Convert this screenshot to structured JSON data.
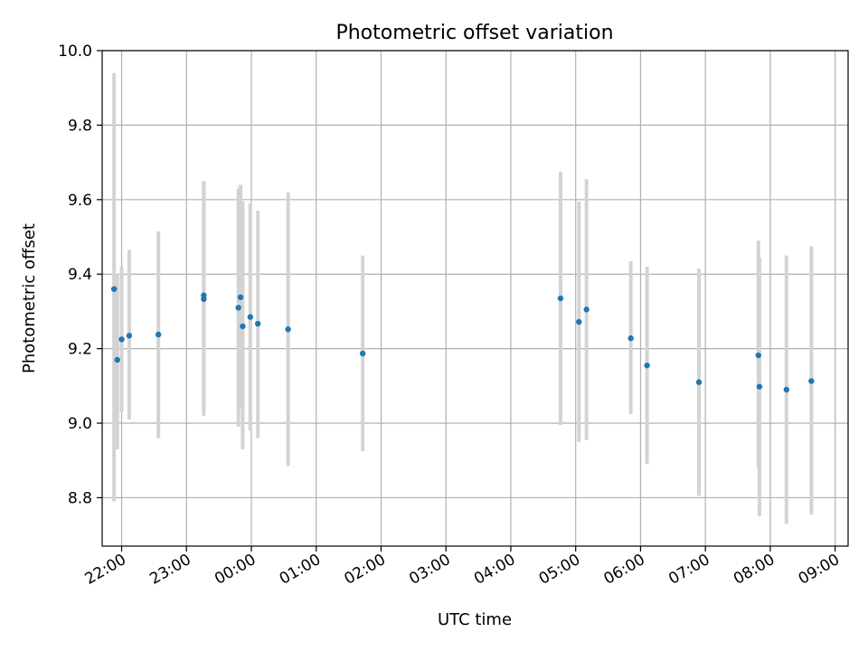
{
  "chart_data": {
    "type": "scatter",
    "title": "Photometric offset variation",
    "xlabel": "UTC time",
    "ylabel": "Photometric offset",
    "x_is_time": true,
    "xlim": [
      "21:42",
      "09:12"
    ],
    "ylim": [
      8.67,
      10.0
    ],
    "grid": true,
    "x_ticks": [
      "22:00",
      "23:00",
      "00:00",
      "01:00",
      "02:00",
      "03:00",
      "04:00",
      "05:00",
      "06:00",
      "07:00",
      "08:00",
      "09:00"
    ],
    "y_ticks": [
      "8.8",
      "9.0",
      "9.2",
      "9.4",
      "9.6",
      "9.8",
      "10.0"
    ],
    "marker_color": "#1f77b4",
    "errorbar_color": "#d3d3d3",
    "series": [
      {
        "points": [
          {
            "time": "21:53",
            "value": 9.36,
            "lo": 8.79,
            "hi": 9.94
          },
          {
            "time": "21:56",
            "value": 9.17,
            "lo": 8.93,
            "hi": 9.4
          },
          {
            "time": "22:00",
            "value": 9.225,
            "lo": 9.03,
            "hi": 9.42
          },
          {
            "time": "22:07",
            "value": 9.235,
            "lo": 9.01,
            "hi": 9.465
          },
          {
            "time": "22:34",
            "value": 9.238,
            "lo": 8.96,
            "hi": 9.515
          },
          {
            "time": "23:16",
            "value": 9.343,
            "lo": 9.03,
            "hi": 9.65
          },
          {
            "time": "23:16",
            "value": 9.333,
            "lo": 9.02,
            "hi": 9.64
          },
          {
            "time": "23:48",
            "value": 9.31,
            "lo": 8.99,
            "hi": 9.63
          },
          {
            "time": "23:50",
            "value": 9.338,
            "lo": 9.04,
            "hi": 9.64
          },
          {
            "time": "23:52",
            "value": 9.26,
            "lo": 8.93,
            "hi": 9.595
          },
          {
            "time": "23:59",
            "value": 9.285,
            "lo": 8.98,
            "hi": 9.59
          },
          {
            "time": "00:06",
            "value": 9.267,
            "lo": 8.96,
            "hi": 9.57
          },
          {
            "time": "00:34",
            "value": 9.252,
            "lo": 8.885,
            "hi": 9.62
          },
          {
            "time": "01:43",
            "value": 9.187,
            "lo": 8.925,
            "hi": 9.45
          },
          {
            "time": "04:46",
            "value": 9.335,
            "lo": 8.995,
            "hi": 9.675
          },
          {
            "time": "05:03",
            "value": 9.272,
            "lo": 8.95,
            "hi": 9.595
          },
          {
            "time": "05:10",
            "value": 9.305,
            "lo": 8.955,
            "hi": 9.655
          },
          {
            "time": "05:51",
            "value": 9.228,
            "lo": 9.025,
            "hi": 9.435
          },
          {
            "time": "06:06",
            "value": 9.155,
            "lo": 8.89,
            "hi": 9.42
          },
          {
            "time": "06:54",
            "value": 9.11,
            "lo": 8.805,
            "hi": 9.415
          },
          {
            "time": "07:49",
            "value": 9.182,
            "lo": 8.88,
            "hi": 9.49
          },
          {
            "time": "07:50",
            "value": 9.098,
            "lo": 8.75,
            "hi": 9.445
          },
          {
            "time": "08:15",
            "value": 9.09,
            "lo": 8.73,
            "hi": 9.45
          },
          {
            "time": "08:38",
            "value": 9.113,
            "lo": 8.755,
            "hi": 9.475
          }
        ]
      }
    ]
  }
}
